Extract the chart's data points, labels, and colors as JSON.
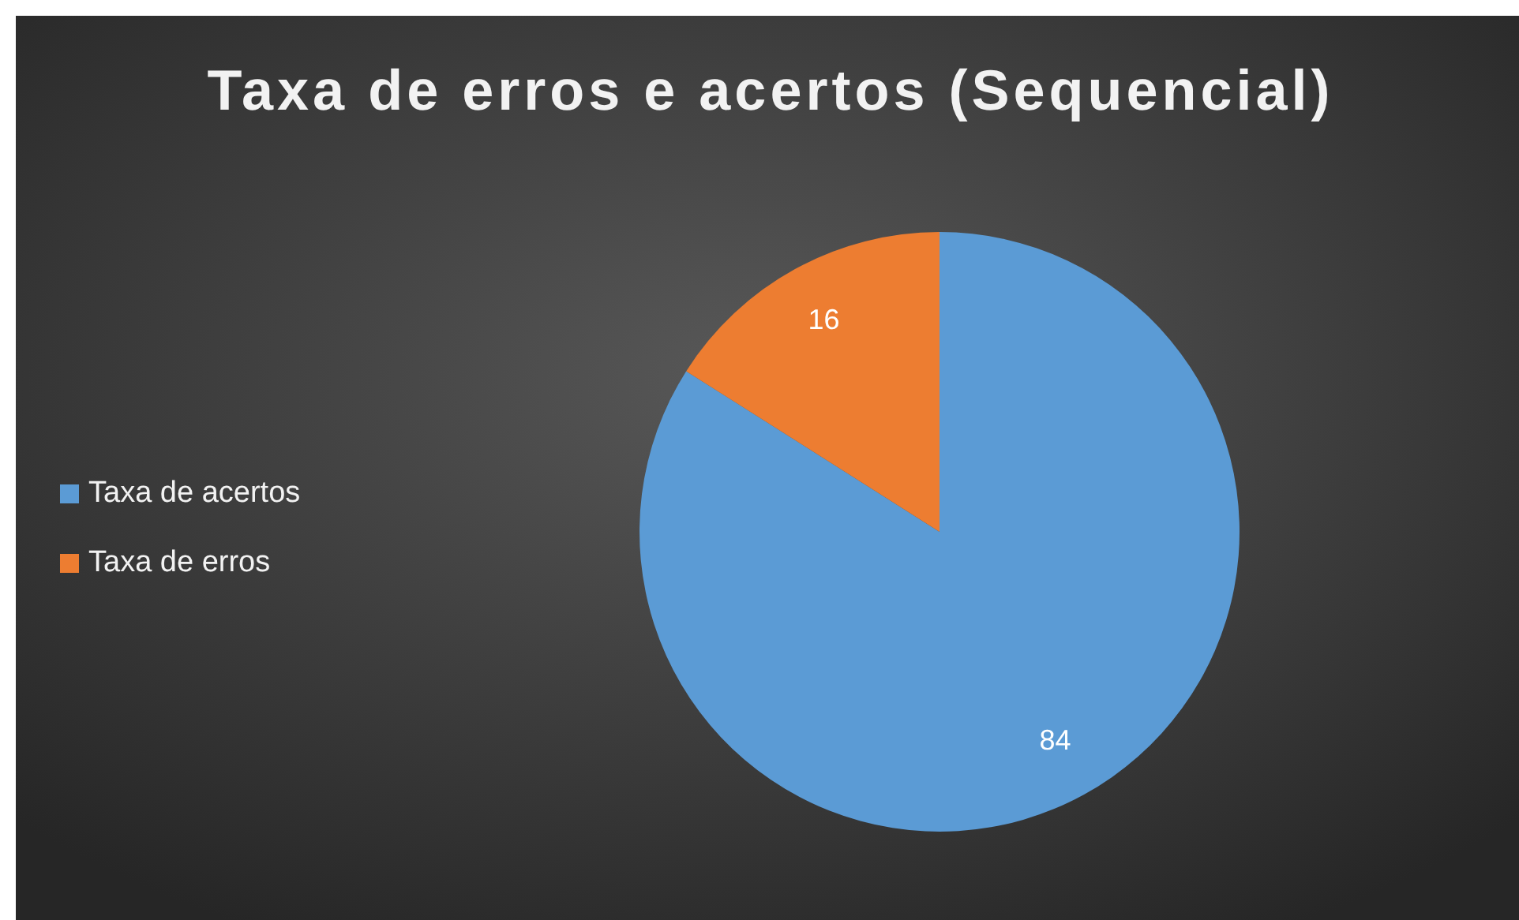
{
  "chart_data": {
    "type": "pie",
    "title": "Taxa de erros e acertos (Sequencial)",
    "categories": [
      "Taxa de acertos",
      "Taxa de erros"
    ],
    "values": [
      84,
      16
    ],
    "colors": [
      "#5b9bd5",
      "#ed7d31"
    ],
    "data_labels": true,
    "legend": "left"
  }
}
